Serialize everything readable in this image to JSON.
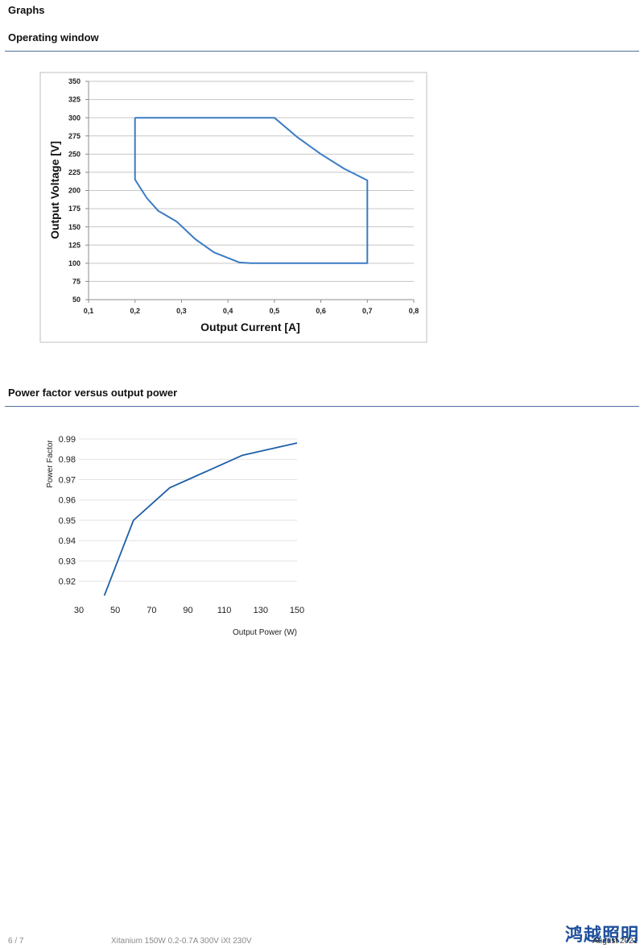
{
  "sections": {
    "graphs_title": "Graphs",
    "operating_window_title": "Operating window",
    "pf_title": "Power factor versus output power"
  },
  "chart_data": [
    {
      "type": "line",
      "xlabel": "Output Current [A]",
      "ylabel": "Output Voltage [V]",
      "xlim": [
        0.1,
        0.8
      ],
      "ylim": [
        50,
        350
      ],
      "x_ticks": [
        0.1,
        0.2,
        0.3,
        0.4,
        0.5,
        0.6,
        0.7,
        0.8
      ],
      "x_tick_labels": [
        "0,1",
        "0,2",
        "0,3",
        "0,4",
        "0,5",
        "0,6",
        "0,7",
        "0,8"
      ],
      "y_ticks": [
        50,
        75,
        100,
        125,
        150,
        175,
        200,
        225,
        250,
        275,
        300,
        325,
        350
      ],
      "y_tick_labels": [
        "50",
        "75",
        "100",
        "125",
        "150",
        "175",
        "200",
        "225",
        "250",
        "275",
        "300",
        "325",
        "350"
      ],
      "grid": true,
      "series": [
        {
          "x": [
            0.2,
            0.5,
            0.55,
            0.6,
            0.65,
            0.7,
            0.7,
            0.45,
            0.425,
            0.37,
            0.33,
            0.29,
            0.25,
            0.225,
            0.2,
            0.2
          ],
          "y": [
            300,
            300,
            273,
            250,
            230,
            214,
            100,
            100,
            101,
            115,
            133,
            157,
            172,
            190,
            215,
            300
          ],
          "color": "#3a7cc4"
        }
      ]
    },
    {
      "type": "line",
      "xlabel": "Output Power (W)",
      "ylabel": "Power Factor",
      "xlim": [
        30,
        150
      ],
      "ylim": [
        0.91,
        0.99
      ],
      "x_ticks": [
        30,
        50,
        70,
        90,
        110,
        130,
        150
      ],
      "x_tick_labels": [
        "30",
        "50",
        "70",
        "90",
        "110",
        "130",
        "150"
      ],
      "y_ticks": [
        0.92,
        0.93,
        0.94,
        0.95,
        0.96,
        0.97,
        0.98,
        0.99
      ],
      "y_tick_labels": [
        "0.92",
        "0.93",
        "0.94",
        "0.95",
        "0.96",
        "0.97",
        "0.98",
        "0.99"
      ],
      "grid": true,
      "series": [
        {
          "x": [
            44,
            60,
            70,
            80,
            90,
            100,
            110,
            120,
            135,
            150
          ],
          "y": [
            0.913,
            0.95,
            0.958,
            0.966,
            0.97,
            0.974,
            0.978,
            0.982,
            0.985,
            0.988
          ],
          "color": "#1f5fa8"
        }
      ]
    }
  ],
  "footer": {
    "page": "6 / 7",
    "product": "Xitanium 150W 0.2-0.7A 300V iXt 230V",
    "date": "August 2021",
    "brand": "鸿越照明"
  }
}
